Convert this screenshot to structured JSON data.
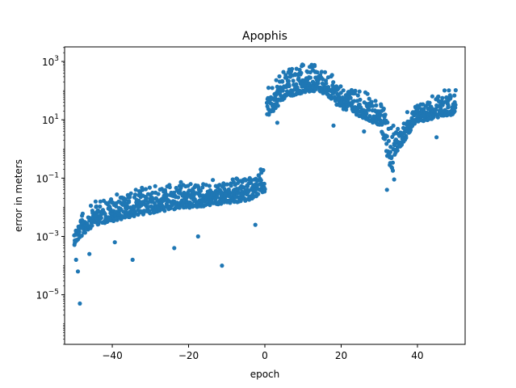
{
  "chart_data": {
    "type": "scatter",
    "title": "Apophis",
    "xlabel": "epoch",
    "ylabel": "error in meters",
    "xlim": [
      -52.5,
      52.5
    ],
    "ylim_log10": [
      -6.7,
      3.5
    ],
    "y_scale": "log",
    "grid": false,
    "legend": "none",
    "x_ticks": [
      -40,
      -20,
      0,
      20,
      40
    ],
    "x_tick_labels": [
      "−40",
      "−20",
      "0",
      "20",
      "40"
    ],
    "y_ticks": [
      {
        "exp": 3,
        "base": "10",
        "sup": "3"
      },
      {
        "exp": 1,
        "base": "10",
        "sup": "1"
      },
      {
        "exp": -1,
        "base": "10",
        "sup": "−1"
      },
      {
        "exp": -3,
        "base": "10",
        "sup": "−3"
      },
      {
        "exp": -5,
        "base": "10",
        "sup": "−5"
      }
    ],
    "marker_color": "#1f77b4",
    "series": [
      {
        "segments": [
          {
            "x_from": -50,
            "x_to": -48,
            "upper_log10_from": -2.6,
            "upper_log10_to": -2.2,
            "lower_log10_from": -3.3,
            "lower_log10_to": -3.0,
            "outliers_log10": [
              -3.8,
              -4.2,
              -5.3
            ]
          },
          {
            "x_from": -48,
            "x_to": -44,
            "upper_log10_from": -2.2,
            "upper_log10_to": -1.7,
            "lower_log10_from": -3.0,
            "lower_log10_to": -2.5,
            "outliers_log10": [
              -3.6
            ]
          },
          {
            "x_from": -44,
            "x_to": -30,
            "upper_log10_from": -1.7,
            "upper_log10_to": -1.2,
            "lower_log10_from": -2.6,
            "lower_log10_to": -2.2,
            "outliers_log10": [
              -3.2,
              -3.8
            ]
          },
          {
            "x_from": -30,
            "x_to": -5,
            "upper_log10_from": -1.2,
            "upper_log10_to": -0.95,
            "lower_log10_from": -2.2,
            "lower_log10_to": -1.8,
            "outliers_log10": [
              -3.4,
              -3.0,
              -4.0
            ]
          },
          {
            "x_from": -5,
            "x_to": 0,
            "upper_log10_from": -0.95,
            "upper_log10_to": -0.6,
            "lower_log10_from": -1.8,
            "lower_log10_to": -1.5,
            "outliers_log10": [
              -2.6
            ]
          },
          {
            "x_from": 0.5,
            "x_to": 6,
            "upper_log10_from": 2.2,
            "upper_log10_to": 2.8,
            "lower_log10_from": 1.0,
            "lower_log10_to": 1.8,
            "outliers_log10": [
              0.9
            ]
          },
          {
            "x_from": 6,
            "x_to": 14,
            "upper_log10_from": 2.8,
            "upper_log10_to": 3.05,
            "lower_log10_from": 1.8,
            "lower_log10_to": 2.0,
            "outliers_log10": []
          },
          {
            "x_from": 14,
            "x_to": 22,
            "upper_log10_from": 3.0,
            "upper_log10_to": 2.2,
            "lower_log10_from": 2.0,
            "lower_log10_to": 1.2,
            "outliers_log10": [
              0.8
            ]
          },
          {
            "x_from": 22,
            "x_to": 30,
            "upper_log10_from": 2.2,
            "upper_log10_to": 1.8,
            "lower_log10_from": 1.3,
            "lower_log10_to": 0.8,
            "outliers_log10": [
              0.6
            ]
          },
          {
            "x_from": 30,
            "x_to": 34,
            "upper_log10_from": 1.8,
            "upper_log10_to": 0.8,
            "lower_log10_from": 0.8,
            "lower_log10_to": -1.2,
            "outliers_log10": [
              -1.4
            ]
          },
          {
            "x_from": 34,
            "x_to": 40,
            "upper_log10_from": 0.8,
            "upper_log10_to": 1.7,
            "lower_log10_from": -0.2,
            "lower_log10_to": 0.9,
            "outliers_log10": [
              0.6
            ]
          },
          {
            "x_from": 40,
            "x_to": 50,
            "upper_log10_from": 1.7,
            "upper_log10_to": 2.2,
            "lower_log10_from": 0.9,
            "lower_log10_to": 1.2,
            "outliers_log10": [
              0.4
            ]
          }
        ]
      }
    ]
  }
}
